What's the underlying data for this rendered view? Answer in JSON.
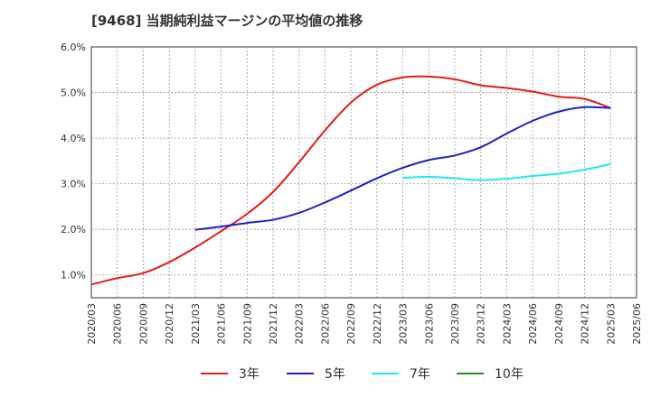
{
  "chart_data": {
    "type": "line",
    "title": "[9468]  当期純利益マージンの平均値の推移",
    "xlabel": "",
    "ylabel": "",
    "x": [
      "2020/03",
      "2020/06",
      "2020/09",
      "2020/12",
      "2021/03",
      "2021/06",
      "2021/09",
      "2021/12",
      "2022/03",
      "2022/06",
      "2022/09",
      "2022/12",
      "2023/03",
      "2023/06",
      "2023/09",
      "2023/12",
      "2024/03",
      "2024/06",
      "2024/09",
      "2024/12",
      "2025/03",
      "2025/06"
    ],
    "ylim": [
      0.5,
      6.0
    ],
    "yticks": [
      1.0,
      2.0,
      3.0,
      4.0,
      5.0,
      6.0
    ],
    "ytick_labels": [
      "1.0%",
      "2.0%",
      "3.0%",
      "4.0%",
      "5.0%",
      "6.0%"
    ],
    "grid": true,
    "legend_position": "bottom",
    "series": [
      {
        "name": "3年",
        "color": "#e31a1c",
        "values": [
          0.79,
          0.93,
          1.04,
          1.28,
          1.6,
          1.96,
          2.34,
          2.82,
          3.47,
          4.17,
          4.78,
          5.17,
          5.33,
          5.35,
          5.29,
          5.16,
          5.1,
          5.02,
          4.91,
          4.86,
          4.66,
          null
        ]
      },
      {
        "name": "5年",
        "color": "#1f1fc8",
        "values": [
          null,
          null,
          null,
          null,
          1.99,
          2.06,
          2.14,
          2.21,
          2.36,
          2.59,
          2.85,
          3.12,
          3.35,
          3.52,
          3.62,
          3.8,
          4.1,
          4.38,
          4.58,
          4.68,
          4.66,
          null
        ]
      },
      {
        "name": "7年",
        "color": "#22e5f2",
        "values": [
          null,
          null,
          null,
          null,
          null,
          null,
          null,
          null,
          null,
          null,
          null,
          null,
          3.13,
          3.15,
          3.12,
          3.08,
          3.11,
          3.17,
          3.22,
          3.31,
          3.43,
          null
        ]
      },
      {
        "name": "10年",
        "color": "#2a8a2a",
        "values": [
          null,
          null,
          null,
          null,
          null,
          null,
          null,
          null,
          null,
          null,
          null,
          null,
          null,
          null,
          null,
          null,
          null,
          null,
          null,
          null,
          null,
          null
        ]
      }
    ]
  }
}
